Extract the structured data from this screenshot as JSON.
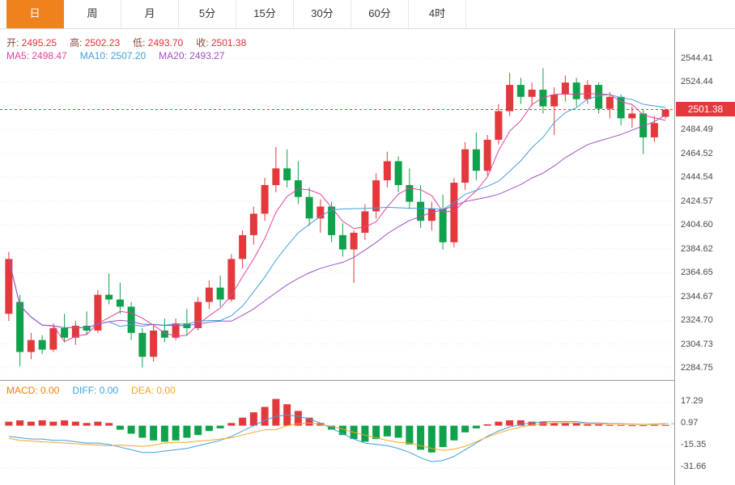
{
  "toolbar": {
    "tabs": [
      {
        "id": "day",
        "label": "日",
        "active": true
      },
      {
        "id": "week",
        "label": "周",
        "active": false
      },
      {
        "id": "month",
        "label": "月",
        "active": false
      },
      {
        "id": "5min",
        "label": "5分",
        "active": false
      },
      {
        "id": "15min",
        "label": "15分",
        "active": false
      },
      {
        "id": "30min",
        "label": "30分",
        "active": false
      },
      {
        "id": "60min",
        "label": "60分",
        "active": false
      },
      {
        "id": "4hour",
        "label": "4时",
        "active": false
      }
    ]
  },
  "info": {
    "ohlc": [
      {
        "label": "开:",
        "value": "2495.25",
        "color": "#e03131",
        "label_color": "#8a4a3a"
      },
      {
        "label": "高:",
        "value": "2502.23",
        "color": "#e03131",
        "label_color": "#8a4a3a"
      },
      {
        "label": "低:",
        "value": "2493.70",
        "color": "#e03131",
        "label_color": "#8a4a3a"
      },
      {
        "label": "收:",
        "value": "2501.38",
        "color": "#e03131",
        "label_color": "#8a4a3a"
      }
    ],
    "ma": [
      {
        "label": "MA5:",
        "value": "2498.47",
        "color": "#e0439b"
      },
      {
        "label": "MA10:",
        "value": "2507.20",
        "color": "#3fa0dc"
      },
      {
        "label": "MA20:",
        "value": "2493.27",
        "color": "#a050c8"
      }
    ]
  },
  "price_axis": {
    "max": 2544.41,
    "min": 2284.75,
    "labels": [
      "2544.41",
      "2524.44",
      "2504.46",
      "2484.49",
      "2464.52",
      "2444.54",
      "2424.57",
      "2404.60",
      "2384.62",
      "2364.65",
      "2344.67",
      "2324.70",
      "2304.73",
      "2284.75"
    ]
  },
  "price_tag": {
    "value": "2501.38"
  },
  "macd_panel": {
    "info": [
      {
        "label": "MACD:",
        "value": "0.00",
        "color": "#f08200"
      },
      {
        "label": "DIFF:",
        "value": "0.00",
        "color": "#3fa0dc"
      },
      {
        "label": "DEA:",
        "value": "0.00",
        "color": "#f5a623"
      }
    ],
    "axis": [
      "17.29",
      "0.97",
      "-15.35",
      "-31.66"
    ]
  },
  "colors": {
    "up": "#e4393c",
    "down": "#0fa14b",
    "price_line": "#e4393c",
    "grid": "#e7e7e7",
    "diff_line": "#3fa0dc",
    "dea_line": "#f5a623",
    "projection": "#7ec8e8",
    "active_tab_bg": "#f0821e"
  },
  "chart_data": {
    "type": "candlestick",
    "convention": "red=up green=down",
    "current_price": 2501.38,
    "ylim": [
      2284.75,
      2544.41
    ],
    "ma": [
      {
        "window": 5,
        "color": "#e0439b"
      },
      {
        "window": 10,
        "color": "#3fa0dc"
      },
      {
        "window": 20,
        "color": "#a050c8"
      }
    ],
    "candles": [
      [
        2330,
        2382,
        2324,
        2376
      ],
      [
        2340,
        2346,
        2286,
        2298
      ],
      [
        2298,
        2314,
        2292,
        2308
      ],
      [
        2308,
        2312,
        2296,
        2300
      ],
      [
        2300,
        2322,
        2298,
        2318
      ],
      [
        2318,
        2330,
        2306,
        2310
      ],
      [
        2310,
        2324,
        2304,
        2320
      ],
      [
        2320,
        2332,
        2312,
        2316
      ],
      [
        2316,
        2350,
        2314,
        2346
      ],
      [
        2346,
        2364,
        2338,
        2342
      ],
      [
        2342,
        2356,
        2330,
        2336
      ],
      [
        2336,
        2340,
        2308,
        2314
      ],
      [
        2314,
        2318,
        2285,
        2294
      ],
      [
        2294,
        2320,
        2290,
        2316
      ],
      [
        2316,
        2326,
        2306,
        2310
      ],
      [
        2310,
        2326,
        2308,
        2322
      ],
      [
        2322,
        2334,
        2312,
        2318
      ],
      [
        2318,
        2344,
        2316,
        2340
      ],
      [
        2340,
        2358,
        2334,
        2352
      ],
      [
        2352,
        2362,
        2336,
        2342
      ],
      [
        2342,
        2380,
        2340,
        2376
      ],
      [
        2376,
        2400,
        2368,
        2396
      ],
      [
        2396,
        2420,
        2388,
        2414
      ],
      [
        2414,
        2444,
        2408,
        2438
      ],
      [
        2438,
        2470,
        2432,
        2452
      ],
      [
        2452,
        2468,
        2436,
        2442
      ],
      [
        2442,
        2458,
        2422,
        2428
      ],
      [
        2428,
        2436,
        2404,
        2410
      ],
      [
        2410,
        2426,
        2398,
        2420
      ],
      [
        2420,
        2424,
        2390,
        2396
      ],
      [
        2396,
        2406,
        2378,
        2384
      ],
      [
        2384,
        2400,
        2356,
        2398
      ],
      [
        2398,
        2422,
        2392,
        2416
      ],
      [
        2416,
        2448,
        2410,
        2442
      ],
      [
        2442,
        2466,
        2436,
        2458
      ],
      [
        2458,
        2462,
        2432,
        2438
      ],
      [
        2438,
        2452,
        2418,
        2424
      ],
      [
        2424,
        2438,
        2402,
        2408
      ],
      [
        2408,
        2424,
        2400,
        2418
      ],
      [
        2418,
        2430,
        2384,
        2390
      ],
      [
        2390,
        2444,
        2386,
        2440
      ],
      [
        2440,
        2474,
        2434,
        2468
      ],
      [
        2468,
        2482,
        2442,
        2450
      ],
      [
        2450,
        2480,
        2446,
        2476
      ],
      [
        2476,
        2506,
        2472,
        2500
      ],
      [
        2500,
        2532,
        2496,
        2522
      ],
      [
        2522,
        2528,
        2506,
        2512
      ],
      [
        2512,
        2524,
        2504,
        2518
      ],
      [
        2518,
        2536,
        2498,
        2504
      ],
      [
        2504,
        2520,
        2480,
        2514
      ],
      [
        2514,
        2530,
        2508,
        2524
      ],
      [
        2524,
        2528,
        2504,
        2510
      ],
      [
        2510,
        2526,
        2506,
        2522
      ],
      [
        2522,
        2524,
        2498,
        2502
      ],
      [
        2502,
        2516,
        2494,
        2512
      ],
      [
        2512,
        2514,
        2488,
        2494
      ],
      [
        2494,
        2504,
        2486,
        2498
      ],
      [
        2498,
        2502,
        2464,
        2478
      ],
      [
        2478,
        2496,
        2474,
        2490
      ],
      [
        2495.25,
        2502.23,
        2493.7,
        2501.38
      ]
    ],
    "macd": {
      "hist": [
        3,
        4,
        3,
        4,
        3,
        4,
        3,
        2,
        3,
        2,
        -3,
        -6,
        -9,
        -11,
        -12,
        -11,
        -9,
        -7,
        -4,
        -2,
        2,
        6,
        10,
        14,
        20,
        16,
        11,
        6,
        2,
        -3,
        -7,
        -10,
        -12,
        -10,
        -8,
        -9,
        -14,
        -18,
        -20,
        -16,
        -11,
        -5,
        -2,
        1,
        3,
        4,
        4,
        3,
        3,
        2,
        2,
        2,
        1,
        1,
        0.5,
        0.5,
        0.3,
        0.3,
        0.5,
        0.5
      ],
      "diff": [
        -8,
        -9,
        -10,
        -10,
        -11,
        -11,
        -12,
        -13,
        -13,
        -14,
        -16,
        -18,
        -20,
        -20,
        -19,
        -18,
        -17,
        -15,
        -13,
        -11,
        -8,
        -4,
        0,
        4,
        7,
        8,
        7,
        5,
        2,
        -2,
        -6,
        -10,
        -13,
        -14,
        -15,
        -17,
        -20,
        -24,
        -27,
        -26,
        -23,
        -18,
        -13,
        -8,
        -4,
        -1,
        1,
        2,
        3,
        3,
        3,
        3,
        2,
        2,
        1.5,
        1.5,
        1.2,
        1,
        1.2,
        1.5
      ],
      "dea": [
        -9.5,
        -11,
        -11.5,
        -12,
        -12.5,
        -13,
        -13.5,
        -14,
        -14.5,
        -15,
        -14.5,
        -15,
        -15.5,
        -14.5,
        -13,
        -12.5,
        -12.5,
        -11.5,
        -11,
        -10,
        -9,
        -7,
        -5,
        -3,
        -3,
        0,
        1.5,
        2,
        1,
        -0.5,
        -2.5,
        -5,
        -7,
        -9,
        -11,
        -12.5,
        -13,
        -15,
        -17,
        -18.5,
        -17.5,
        -15.5,
        -12,
        -8.5,
        -5.5,
        -3,
        -1,
        0.5,
        1.5,
        2,
        2,
        2,
        1.5,
        1.5,
        1.25,
        1.25,
        1.05,
        0.85,
        0.95,
        1.25
      ]
    }
  }
}
